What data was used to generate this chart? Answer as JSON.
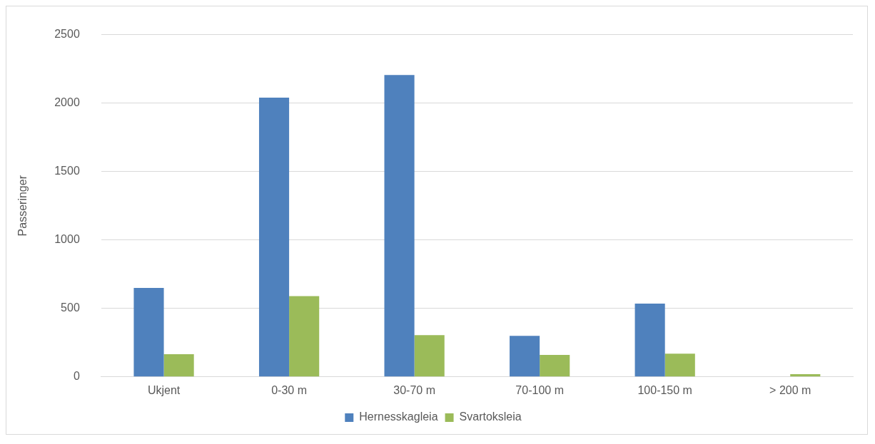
{
  "chart_data": {
    "type": "bar",
    "ylabel": "Passeringer",
    "categories": [
      "Ukjent",
      "0-30 m",
      "30-70 m",
      "70-100 m",
      "100-150 m",
      "> 200 m"
    ],
    "series": [
      {
        "name": "Hernesskagleia",
        "color": "#4f81bd",
        "values": [
          650,
          2040,
          2205,
          300,
          535,
          0
        ]
      },
      {
        "name": "Svartoksleia",
        "color": "#9bbb59",
        "values": [
          165,
          590,
          305,
          160,
          170,
          20
        ]
      }
    ],
    "ylim": [
      0,
      2500
    ],
    "yticks": [
      0,
      500,
      1000,
      1500,
      2000,
      2500
    ],
    "grid": "y",
    "legend": "bottom"
  }
}
